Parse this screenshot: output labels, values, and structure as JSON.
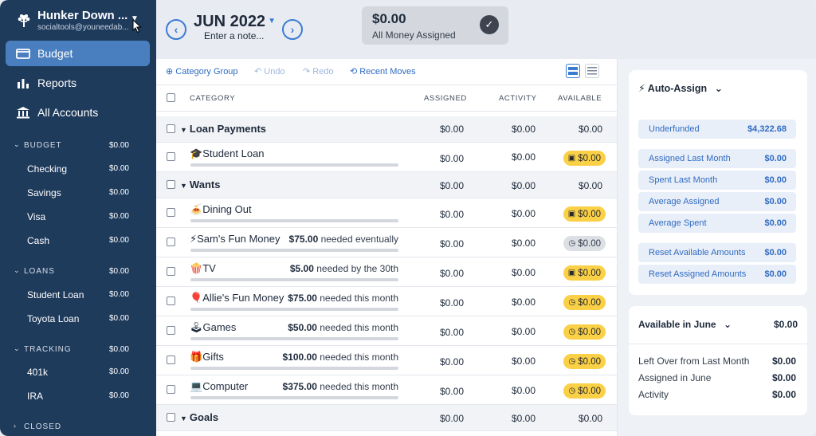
{
  "sidebar": {
    "budget_name": "Hunker Down ...",
    "email": "socialtools@youneedab...",
    "nav": [
      {
        "label": "Budget",
        "icon": "envelope-icon"
      },
      {
        "label": "Reports",
        "icon": "bar-chart-icon"
      },
      {
        "label": "All Accounts",
        "icon": "bank-icon"
      }
    ],
    "groups": [
      {
        "label": "BUDGET",
        "value": "$0.00",
        "accounts": [
          {
            "label": "Checking",
            "value": "$0.00"
          },
          {
            "label": "Savings",
            "value": "$0.00"
          },
          {
            "label": "Visa",
            "value": "$0.00"
          },
          {
            "label": "Cash",
            "value": "$0.00"
          }
        ]
      },
      {
        "label": "LOANS",
        "value": "$0.00",
        "accounts": [
          {
            "label": "Student Loan",
            "value": "$0.00"
          },
          {
            "label": "Toyota Loan",
            "value": "$0.00"
          }
        ]
      },
      {
        "label": "TRACKING",
        "value": "$0.00",
        "accounts": [
          {
            "label": "401k",
            "value": "$0.00"
          },
          {
            "label": "IRA",
            "value": "$0.00"
          }
        ]
      },
      {
        "label": "CLOSED",
        "value": ""
      }
    ]
  },
  "header": {
    "month": "JUN 2022",
    "note_placeholder": "Enter a note...",
    "assigned_amount": "$0.00",
    "assigned_label": "All Money Assigned"
  },
  "toolbar": {
    "category_group": "Category Group",
    "undo": "Undo",
    "redo": "Redo",
    "recent_moves": "Recent Moves"
  },
  "table": {
    "columns": {
      "category": "CATEGORY",
      "assigned": "ASSIGNED",
      "activity": "ACTIVITY",
      "available": "AVAILABLE"
    },
    "rows": [
      {
        "type": "group",
        "name": "Loan Payments",
        "assigned": "$0.00",
        "activity": "$0.00",
        "available": "$0.00"
      },
      {
        "type": "cat",
        "emoji": "🎓",
        "name": "Student Loan",
        "goal_amt": "",
        "goal_text": "",
        "assigned": "$0.00",
        "activity": "$0.00",
        "available": "$0.00",
        "pill": "yellow",
        "pill_icon": "calendar-icon"
      },
      {
        "type": "group",
        "name": "Wants",
        "assigned": "$0.00",
        "activity": "$0.00",
        "available": "$0.00"
      },
      {
        "type": "cat",
        "emoji": "🍝",
        "name": "Dining Out",
        "goal_amt": "",
        "goal_text": "",
        "assigned": "$0.00",
        "activity": "$0.00",
        "available": "$0.00",
        "pill": "yellow",
        "pill_icon": "calendar-icon"
      },
      {
        "type": "cat",
        "emoji": "⚡",
        "name": "Sam's Fun Money",
        "goal_amt": "$75.00",
        "goal_text": " needed eventually",
        "assigned": "$0.00",
        "activity": "$0.00",
        "available": "$0.00",
        "pill": "grey",
        "pill_icon": "clock-icon"
      },
      {
        "type": "cat",
        "emoji": "🍿",
        "name": "TV",
        "goal_amt": "$5.00",
        "goal_text": " needed by the 30th",
        "assigned": "$0.00",
        "activity": "$0.00",
        "available": "$0.00",
        "pill": "yellow",
        "pill_icon": "calendar-icon"
      },
      {
        "type": "cat",
        "emoji": "🎈",
        "name": "Allie's Fun Money",
        "goal_amt": "$75.00",
        "goal_text": " needed this month",
        "assigned": "$0.00",
        "activity": "$0.00",
        "available": "$0.00",
        "pill": "yellow",
        "pill_icon": "clock-icon"
      },
      {
        "type": "cat",
        "emoji": "🕹",
        "name": "Games",
        "goal_amt": "$50.00",
        "goal_text": " needed this month",
        "assigned": "$0.00",
        "activity": "$0.00",
        "available": "$0.00",
        "pill": "yellow",
        "pill_icon": "clock-icon"
      },
      {
        "type": "cat",
        "emoji": "🎁",
        "name": "Gifts",
        "goal_amt": "$100.00",
        "goal_text": " needed this month",
        "assigned": "$0.00",
        "activity": "$0.00",
        "available": "$0.00",
        "pill": "yellow",
        "pill_icon": "clock-icon"
      },
      {
        "type": "cat",
        "emoji": "💻",
        "name": "Computer",
        "goal_amt": "$375.00",
        "goal_text": " needed this month",
        "assigned": "$0.00",
        "activity": "$0.00",
        "available": "$0.00",
        "pill": "yellow",
        "pill_icon": "clock-icon"
      },
      {
        "type": "group",
        "name": "Goals",
        "assigned": "$0.00",
        "activity": "$0.00",
        "available": "$0.00"
      }
    ]
  },
  "auto_assign": {
    "title": "Auto-Assign",
    "items": [
      {
        "label": "Underfunded",
        "value": "$4,322.68"
      },
      {
        "label": "Assigned Last Month",
        "value": "$0.00"
      },
      {
        "label": "Spent Last Month",
        "value": "$0.00"
      },
      {
        "label": "Average Assigned",
        "value": "$0.00"
      },
      {
        "label": "Average Spent",
        "value": "$0.00"
      },
      {
        "label": "Reset Available Amounts",
        "value": "$0.00"
      },
      {
        "label": "Reset Assigned Amounts",
        "value": "$0.00"
      }
    ]
  },
  "available": {
    "title": "Available in June",
    "value": "$0.00",
    "rows": [
      {
        "label": "Left Over from Last Month",
        "value": "$0.00"
      },
      {
        "label": "Assigned in June",
        "value": "$0.00"
      },
      {
        "label": "Activity",
        "value": "$0.00"
      }
    ]
  },
  "colors": {
    "sidebar": "#1f3b5c",
    "accent": "#3b7bd4",
    "active_nav": "#4a7fbf",
    "pill_yellow": "#f9d046"
  }
}
